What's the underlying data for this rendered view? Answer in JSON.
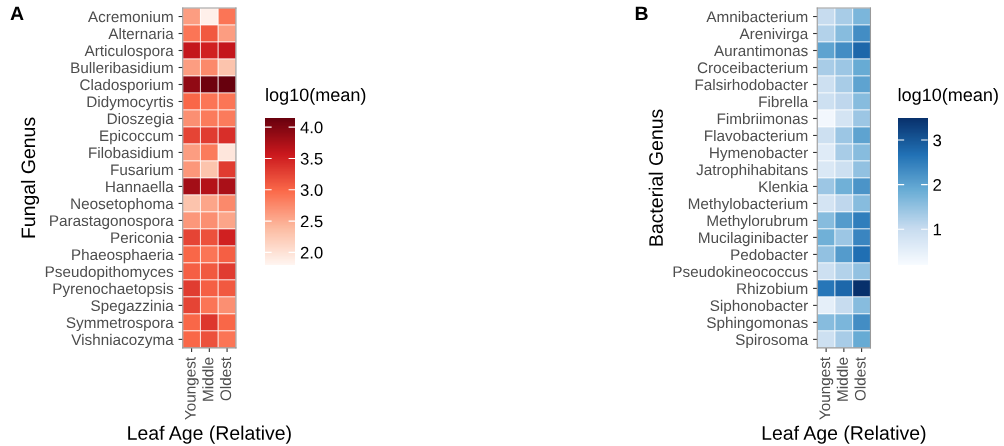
{
  "chart_data": [
    {
      "type": "heatmap",
      "title": "A",
      "xlabel": "Leaf Age (Relative)",
      "ylabel": "Fungal Genus",
      "clabel": "log10(mean)",
      "categories": [
        "Youngest",
        "Middle",
        "Oldest"
      ],
      "y_categories": [
        "Acremonium",
        "Alternaria",
        "Articulospora",
        "Bulleribasidium",
        "Cladosporium",
        "Didymocyrtis",
        "Dioszegia",
        "Epicoccum",
        "Filobasidium",
        "Fusarium",
        "Hannaella",
        "Neosetophoma",
        "Parastagonospora",
        "Periconia",
        "Phaeosphaeria",
        "Pseudopithomyces",
        "Pyrenochaetopsis",
        "Spegazzinia",
        "Symmetrospora",
        "Vishniacozyma"
      ],
      "cells": [
        [
          2.6,
          1.85,
          2.9
        ],
        [
          2.9,
          3.1,
          2.6
        ],
        [
          3.6,
          3.5,
          3.6
        ],
        [
          2.6,
          2.75,
          2.3
        ],
        [
          3.9,
          4.1,
          4.15
        ],
        [
          3.0,
          2.9,
          2.9
        ],
        [
          2.7,
          2.85,
          2.85
        ],
        [
          3.25,
          3.3,
          3.4
        ],
        [
          2.6,
          2.85,
          1.95
        ],
        [
          2.65,
          2.3,
          3.3
        ],
        [
          3.8,
          3.7,
          3.75
        ],
        [
          2.3,
          2.55,
          2.75
        ],
        [
          2.65,
          2.7,
          2.55
        ],
        [
          3.25,
          3.15,
          3.5
        ],
        [
          3.0,
          2.9,
          3.05
        ],
        [
          3.05,
          3.1,
          3.3
        ],
        [
          3.3,
          3.05,
          3.1
        ],
        [
          3.25,
          2.9,
          2.7
        ],
        [
          3.0,
          3.35,
          3.0
        ],
        [
          3.0,
          3.15,
          2.9
        ]
      ],
      "colors": [
        "#fff5f0",
        "#fcbba1",
        "#fb6a4a",
        "#cb181d",
        "#67000d"
      ],
      "clim": [
        1.8,
        4.15
      ],
      "cticks": [
        {
          "value": 2.0,
          "label": "2.0"
        },
        {
          "value": 2.5,
          "label": "2.5"
        },
        {
          "value": 3.0,
          "label": "3.0"
        },
        {
          "value": 3.5,
          "label": "3.5"
        },
        {
          "value": 4.0,
          "label": "4.0"
        }
      ]
    },
    {
      "type": "heatmap",
      "title": "B",
      "xlabel": "Leaf Age (Relative)",
      "ylabel": "Bacterial Genus",
      "clabel": "log10(mean)",
      "categories": [
        "Youngest",
        "Middle",
        "Oldest"
      ],
      "y_categories": [
        "Amnibacterium",
        "Arenivirga",
        "Aurantimonas",
        "Croceibacterium",
        "Falsirhodobacter",
        "Fibrella",
        "Fimbriimonas",
        "Flavobacterium",
        "Hymenobacter",
        "Jatrophihabitans",
        "Klenkia",
        "Methylobacterium",
        "Methylorubrum",
        "Mucilaginibacter",
        "Pedobacter",
        "Pseudokineococcus",
        "Rhizobium",
        "Siphonobacter",
        "Sphingomonas",
        "Spirosoma"
      ],
      "cells": [
        [
          1.0,
          1.3,
          1.7
        ],
        [
          1.2,
          1.6,
          2.3
        ],
        [
          2.0,
          2.3,
          2.8
        ],
        [
          1.3,
          1.4,
          1.9
        ],
        [
          0.9,
          1.3,
          2.0
        ],
        [
          0.9,
          1.1,
          1.6
        ],
        [
          0.3,
          0.8,
          1.4
        ],
        [
          0.9,
          1.4,
          2.0
        ],
        [
          0.6,
          1.3,
          1.6
        ],
        [
          0.7,
          0.9,
          1.5
        ],
        [
          1.4,
          1.8,
          2.2
        ],
        [
          0.8,
          1.1,
          1.6
        ],
        [
          1.6,
          2.1,
          2.5
        ],
        [
          1.8,
          1.4,
          2.4
        ],
        [
          1.5,
          2.1,
          2.7
        ],
        [
          0.9,
          1.2,
          1.5
        ],
        [
          2.6,
          2.8,
          3.5
        ],
        [
          0.5,
          1.0,
          1.6
        ],
        [
          1.6,
          1.7,
          2.3
        ],
        [
          0.9,
          1.3,
          1.9
        ]
      ],
      "colors": [
        "#f7fbff",
        "#c6dbef",
        "#6baed6",
        "#2171b5",
        "#08306b"
      ],
      "clim": [
        0.2,
        3.5
      ],
      "cticks": [
        1,
        2,
        3
      ]
    }
  ]
}
